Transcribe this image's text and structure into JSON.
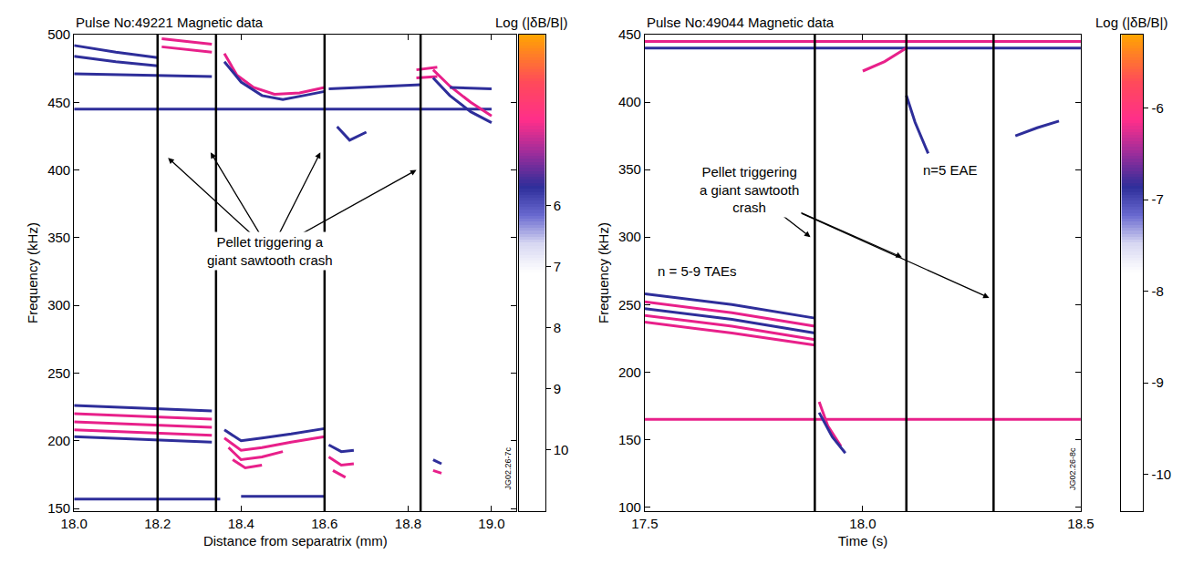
{
  "chart_data": [
    {
      "type": "spectrogram",
      "title": "Pulse No:49221 Magnetic data",
      "x_label": "Distance from separatrix (mm)",
      "y_label": "Frequency (kHz)",
      "xlim": [
        18.0,
        19.06
      ],
      "ylim": [
        148,
        500
      ],
      "xticks": [
        {
          "value": 18.0,
          "label": "18.0"
        },
        18.2,
        18.4,
        18.6,
        18.8,
        {
          "value": 19.0,
          "label": "19.0"
        }
      ],
      "yticks": [
        150,
        200,
        250,
        300,
        350,
        400,
        450,
        500
      ],
      "grid": false,
      "colorbar_title": "Log (|δB/B|)",
      "zlim": [
        11.0,
        3.2
      ],
      "zticks": [
        6,
        7,
        8,
        9,
        10
      ],
      "figure_id": "JG02.26-7c",
      "events": [
        18.2,
        18.34,
        18.6,
        18.83
      ],
      "annotations": [
        {
          "text": "Pellet triggering a giant sawtooth crash",
          "x": 18.47,
          "y": 340,
          "arrows": [
            [
              18.225,
              409
            ],
            [
              18.327,
              413
            ],
            [
              18.59,
              413
            ],
            [
              18.82,
              400
            ]
          ]
        }
      ],
      "series": [
        {
          "color": "#2e2e9a",
          "x": [
            18.0,
            18.1,
            18.2
          ],
          "values": [
            492,
            487,
            483
          ]
        },
        {
          "color": "#2e2e9a",
          "x": [
            18.0,
            18.1,
            18.2
          ],
          "values": [
            484,
            480,
            477
          ]
        },
        {
          "color": "#2e2e9a",
          "x": [
            18.0,
            18.33
          ],
          "values": [
            471,
            469
          ]
        },
        {
          "color": "#e8208a",
          "x": [
            18.21,
            18.27,
            18.33
          ],
          "values": [
            497,
            495,
            493
          ]
        },
        {
          "color": "#e8208a",
          "x": [
            18.21,
            18.27,
            18.33
          ],
          "values": [
            491,
            489,
            487
          ]
        },
        {
          "color": "#e8208a",
          "x": [
            18.36,
            18.39,
            18.43,
            18.48,
            18.54,
            18.6
          ],
          "values": [
            486,
            470,
            461,
            456,
            457,
            461
          ]
        },
        {
          "color": "#2e2e9a",
          "x": [
            18.36,
            18.4,
            18.45,
            18.5,
            18.55,
            18.6
          ],
          "values": [
            480,
            465,
            455,
            452,
            455,
            458
          ]
        },
        {
          "color": "#2e2e9a",
          "x": [
            18.0,
            19.0
          ],
          "values": [
            445,
            445
          ]
        },
        {
          "color": "#2e2e9a",
          "x": [
            18.61,
            18.83
          ],
          "values": [
            460,
            463
          ]
        },
        {
          "color": "#2e2e9a",
          "x": [
            18.63,
            18.66,
            18.7
          ],
          "values": [
            432,
            422,
            428
          ]
        },
        {
          "color": "#e8208a",
          "x": [
            18.82,
            18.87
          ],
          "values": [
            474,
            476
          ]
        },
        {
          "color": "#e8208a",
          "x": [
            18.82,
            18.87
          ],
          "values": [
            468,
            469
          ]
        },
        {
          "color": "#e8208a",
          "x": [
            18.86,
            18.9,
            18.95,
            19.0
          ],
          "values": [
            474,
            462,
            450,
            440
          ]
        },
        {
          "color": "#2e2e9a",
          "x": [
            18.86,
            18.9,
            18.95,
            19.0
          ],
          "values": [
            468,
            455,
            443,
            435
          ]
        },
        {
          "color": "#2e2e9a",
          "x": [
            18.9,
            19.0
          ],
          "values": [
            461,
            460
          ]
        },
        {
          "color": "#2e2e9a",
          "x": [
            18.0,
            18.33
          ],
          "values": [
            226,
            222
          ]
        },
        {
          "color": "#e8208a",
          "x": [
            18.0,
            18.33
          ],
          "values": [
            220,
            216
          ]
        },
        {
          "color": "#e8208a",
          "x": [
            18.0,
            18.33
          ],
          "values": [
            214,
            210
          ]
        },
        {
          "color": "#e8208a",
          "x": [
            18.0,
            18.33
          ],
          "values": [
            208,
            204
          ]
        },
        {
          "color": "#2e2e9a",
          "x": [
            18.0,
            18.33
          ],
          "values": [
            203,
            199
          ]
        },
        {
          "color": "#2e2e9a",
          "x": [
            18.36,
            18.4,
            18.45,
            18.52,
            18.6
          ],
          "values": [
            208,
            200,
            202,
            205,
            209
          ]
        },
        {
          "color": "#e8208a",
          "x": [
            18.36,
            18.4,
            18.45,
            18.52,
            18.6
          ],
          "values": [
            202,
            193,
            195,
            199,
            203
          ]
        },
        {
          "color": "#e8208a",
          "x": [
            18.37,
            18.4,
            18.45,
            18.5
          ],
          "values": [
            195,
            186,
            188,
            192
          ]
        },
        {
          "color": "#e8208a",
          "x": [
            18.38,
            18.41,
            18.45
          ],
          "values": [
            186,
            180,
            182
          ]
        },
        {
          "color": "#2e2e9a",
          "x": [
            18.61,
            18.64,
            18.67
          ],
          "values": [
            197,
            192,
            193
          ]
        },
        {
          "color": "#e8208a",
          "x": [
            18.61,
            18.64,
            18.67
          ],
          "values": [
            188,
            182,
            183
          ]
        },
        {
          "color": "#e8208a",
          "x": [
            18.62,
            18.65
          ],
          "values": [
            178,
            173
          ]
        },
        {
          "color": "#2e2e9a",
          "x": [
            18.86,
            18.88
          ],
          "values": [
            186,
            183
          ]
        },
        {
          "color": "#e8208a",
          "x": [
            18.86,
            18.88
          ],
          "values": [
            178,
            176
          ]
        },
        {
          "color": "#2e2e9a",
          "x": [
            18.0,
            18.35
          ],
          "values": [
            157,
            157
          ]
        },
        {
          "color": "#2e2e9a",
          "x": [
            18.4,
            18.6
          ],
          "values": [
            159,
            159
          ]
        }
      ]
    },
    {
      "type": "spectrogram",
      "title": "Pulse No:49044 Magnetic data",
      "x_label": "Time (s)",
      "y_label": "Frequency (kHz)",
      "xlim": [
        17.5,
        18.5
      ],
      "ylim": [
        97,
        450
      ],
      "xticks": [
        17.5,
        {
          "value": 18.0,
          "label": "18.0"
        },
        18.5
      ],
      "yticks": [
        100,
        150,
        200,
        250,
        300,
        350,
        400,
        450
      ],
      "grid": false,
      "colorbar_title": "Log (|δB/B|)",
      "zlim": [
        -10.4,
        -5.2
      ],
      "zticks": [
        -6,
        -7,
        -8,
        -9,
        -10
      ],
      "figure_id": "JG02.26-8c",
      "events": [
        17.89,
        18.1,
        18.3
      ],
      "annotations": [
        {
          "text": "Pellet triggering a giant sawtooth crash",
          "x": 17.74,
          "y": 335,
          "arrows": [
            [
              17.88,
              300
            ],
            [
              18.09,
              285
            ],
            [
              18.29,
              255
            ]
          ]
        },
        {
          "text": "n=5 EAE",
          "x": 18.2,
          "y": 350
        },
        {
          "text": "n = 5-9 TAEs",
          "x": 17.62,
          "y": 275
        }
      ],
      "series": [
        {
          "color": "#2e2e9a",
          "x": [
            17.5,
            17.7,
            17.89
          ],
          "values": [
            258,
            250,
            240
          ]
        },
        {
          "color": "#e8208a",
          "x": [
            17.5,
            17.7,
            17.89
          ],
          "values": [
            252,
            244,
            234
          ]
        },
        {
          "color": "#2e2e9a",
          "x": [
            17.5,
            17.7,
            17.89
          ],
          "values": [
            247,
            239,
            229
          ]
        },
        {
          "color": "#e8208a",
          "x": [
            17.5,
            17.7,
            17.89
          ],
          "values": [
            242,
            234,
            224
          ]
        },
        {
          "color": "#e8208a",
          "x": [
            17.5,
            17.7,
            17.89
          ],
          "values": [
            237,
            229,
            220
          ]
        },
        {
          "color": "#e8208a",
          "x": [
            17.5,
            18.5
          ],
          "values": [
            165,
            165
          ]
        },
        {
          "color": "#e8208a",
          "x": [
            17.9,
            17.92,
            17.95
          ],
          "values": [
            178,
            160,
            145
          ]
        },
        {
          "color": "#2e2e9a",
          "x": [
            17.9,
            17.93,
            17.96
          ],
          "values": [
            170,
            152,
            140
          ]
        },
        {
          "color": "#e8208a",
          "x": [
            17.5,
            18.5
          ],
          "values": [
            445,
            445
          ]
        },
        {
          "color": "#2e2e9a",
          "x": [
            17.5,
            18.5
          ],
          "values": [
            440,
            440
          ]
        },
        {
          "color": "#e8208a",
          "x": [
            18.0,
            18.05,
            18.1
          ],
          "values": [
            423,
            430,
            440
          ]
        },
        {
          "color": "#2e2e9a",
          "x": [
            18.1,
            18.12,
            18.15
          ],
          "values": [
            405,
            385,
            362
          ]
        },
        {
          "color": "#2e2e9a",
          "x": [
            18.35,
            18.4,
            18.45
          ],
          "values": [
            375,
            381,
            386
          ]
        }
      ]
    }
  ]
}
